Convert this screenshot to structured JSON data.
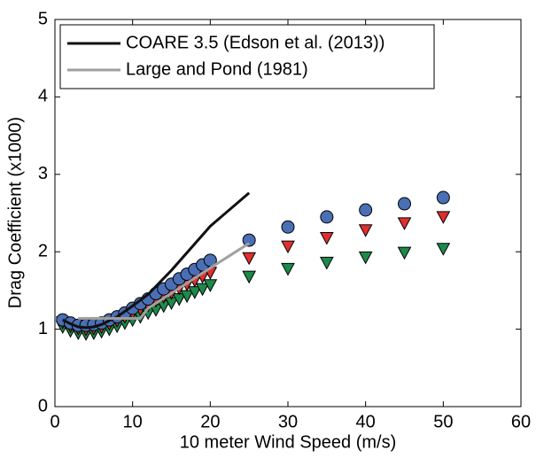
{
  "chart_data": {
    "type": "line",
    "xlabel": "10 meter Wind Speed (m/s)",
    "ylabel": "Drag Coefficient (x1000)",
    "xlim": [
      0,
      60
    ],
    "xticks": [
      0,
      10,
      20,
      30,
      40,
      50,
      60
    ],
    "ylim": [
      0,
      5
    ],
    "yticks": [
      0,
      1,
      2,
      3,
      4,
      5
    ],
    "legend": "upper left",
    "series": [
      {
        "marker": "triangle-down",
        "color": "#1d8a4a",
        "x": [
          1,
          2,
          3,
          4,
          5,
          6,
          7,
          8,
          9,
          10,
          11,
          12,
          13,
          14,
          15,
          16,
          17,
          18,
          19,
          20,
          25,
          30,
          35,
          40,
          45,
          50
        ],
        "values": [
          1.03,
          0.98,
          0.95,
          0.94,
          0.95,
          0.97,
          1.0,
          1.04,
          1.08,
          1.12,
          1.16,
          1.21,
          1.25,
          1.3,
          1.34,
          1.39,
          1.43,
          1.48,
          1.52,
          1.57,
          1.68,
          1.78,
          1.86,
          1.93,
          1.99,
          2.04
        ]
      },
      {
        "marker": "triangle-down",
        "color": "#e0302e",
        "x": [
          1,
          2,
          3,
          4,
          5,
          6,
          7,
          8,
          9,
          10,
          11,
          12,
          13,
          14,
          15,
          16,
          17,
          18,
          19,
          20,
          25,
          30,
          35,
          40,
          45,
          50
        ],
        "values": [
          1.09,
          1.04,
          1.01,
          1.0,
          1.01,
          1.03,
          1.07,
          1.11,
          1.16,
          1.21,
          1.26,
          1.31,
          1.37,
          1.42,
          1.47,
          1.53,
          1.58,
          1.63,
          1.68,
          1.73,
          1.92,
          2.07,
          2.18,
          2.28,
          2.37,
          2.45
        ]
      },
      {
        "marker": "circle",
        "color": "#4a6fb5",
        "x": [
          1,
          2,
          3,
          4,
          5,
          6,
          7,
          8,
          9,
          10,
          11,
          12,
          13,
          14,
          15,
          16,
          17,
          18,
          19,
          20,
          25,
          30,
          35,
          40,
          45,
          50
        ],
        "values": [
          1.12,
          1.08,
          1.05,
          1.05,
          1.06,
          1.08,
          1.12,
          1.16,
          1.21,
          1.27,
          1.33,
          1.39,
          1.46,
          1.52,
          1.58,
          1.65,
          1.71,
          1.77,
          1.83,
          1.89,
          2.15,
          2.32,
          2.45,
          2.54,
          2.62,
          2.7
        ]
      },
      {
        "name": "COARE 3.5 (Edson et al. (2013))",
        "color": "#111111",
        "x": [
          1,
          2,
          3,
          4,
          5,
          6,
          8,
          10,
          12,
          15,
          20,
          25
        ],
        "values": [
          1.12,
          1.07,
          1.03,
          1.02,
          1.03,
          1.06,
          1.16,
          1.3,
          1.45,
          1.76,
          2.33,
          2.76
        ]
      },
      {
        "name": "Large and Pond (1981)",
        "color": "#a0a0a0",
        "x": [
          3,
          4,
          6,
          8,
          10,
          11,
          12,
          14,
          16,
          18,
          20,
          25
        ],
        "values": [
          1.14,
          1.14,
          1.14,
          1.14,
          1.14,
          1.14,
          1.27,
          1.4,
          1.53,
          1.66,
          1.79,
          2.11
        ]
      }
    ]
  }
}
